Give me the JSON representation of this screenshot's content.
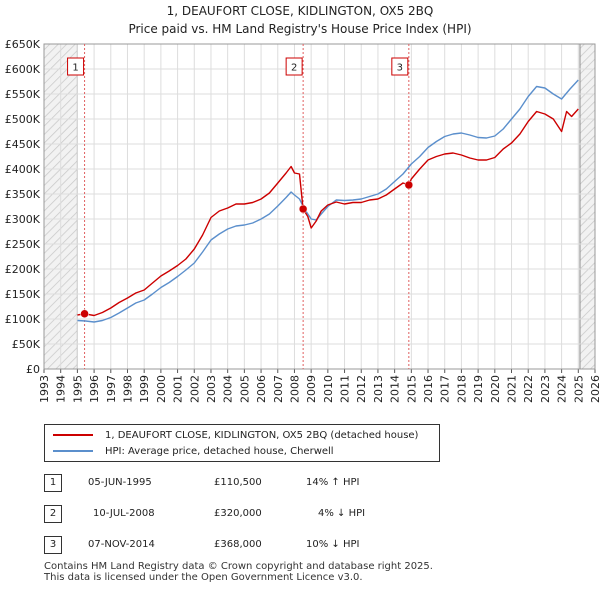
{
  "title_line1": "1, DEAUFORT CLOSE, KIDLINGTON, OX5 2BQ",
  "title_line2": "Price paid vs. HM Land Registry's House Price Index (HPI)",
  "legend": {
    "red_label": "1, DEAUFORT CLOSE, KIDLINGTON, OX5 2BQ (detached house)",
    "blue_label": "HPI: Average price, detached house, Cherwell"
  },
  "transactions": [
    {
      "num": "1",
      "date": "05-JUN-1995",
      "price": "£110,500",
      "hpi": "14% ↑ HPI"
    },
    {
      "num": "2",
      "date": "10-JUL-2008",
      "price": "£320,000",
      "hpi": "4% ↓ HPI"
    },
    {
      "num": "3",
      "date": "07-NOV-2014",
      "price": "£368,000",
      "hpi": "10% ↓ HPI"
    }
  ],
  "footer": {
    "line1": "Contains HM Land Registry data © Crown copyright and database right 2025.",
    "line2": "This data is licensed under the Open Government Licence v3.0."
  },
  "chart_data": {
    "type": "line",
    "title": "Price paid vs. HM Land Registry's House Price Index (HPI)",
    "xlabel": "",
    "ylabel": "",
    "xlim": [
      1993,
      2026
    ],
    "ylim": [
      0,
      650000
    ],
    "x_ticks": [
      1993,
      1994,
      1995,
      1996,
      1997,
      1998,
      1999,
      2000,
      2001,
      2002,
      2003,
      2004,
      2005,
      2006,
      2007,
      2008,
      2009,
      2010,
      2011,
      2012,
      2013,
      2014,
      2015,
      2016,
      2017,
      2018,
      2019,
      2020,
      2021,
      2022,
      2023,
      2024,
      2025,
      2026
    ],
    "y_ticks": [
      0,
      50000,
      100000,
      150000,
      200000,
      250000,
      300000,
      350000,
      400000,
      450000,
      500000,
      550000,
      600000,
      650000
    ],
    "y_tick_labels": [
      "£0",
      "£50K",
      "£100K",
      "£150K",
      "£200K",
      "£250K",
      "£300K",
      "£350K",
      "£400K",
      "£450K",
      "£500K",
      "£550K",
      "£600K",
      "£650K"
    ],
    "hatched_before": 1995.0,
    "hatched_after": 2025.1,
    "series": [
      {
        "name": "1, DEAUFORT CLOSE, KIDLINGTON, OX5 2BQ (detached house)",
        "color": "#cc0000",
        "x": [
          1995.0,
          1995.43,
          1996.0,
          1996.5,
          1997.0,
          1997.5,
          1998.0,
          1998.5,
          1999.0,
          1999.5,
          2000.0,
          2000.5,
          2001.0,
          2001.5,
          2002.0,
          2002.5,
          2003.0,
          2003.5,
          2004.0,
          2004.5,
          2005.0,
          2005.5,
          2006.0,
          2006.5,
          2007.0,
          2007.5,
          2007.8,
          2008.0,
          2008.3,
          2008.52,
          2008.8,
          2009.0,
          2009.3,
          2009.6,
          2010.0,
          2010.5,
          2011.0,
          2011.5,
          2012.0,
          2012.5,
          2013.0,
          2013.5,
          2014.0,
          2014.5,
          2014.85,
          2015.0,
          2015.5,
          2016.0,
          2016.5,
          2017.0,
          2017.5,
          2018.0,
          2018.5,
          2019.0,
          2019.5,
          2020.0,
          2020.5,
          2021.0,
          2021.5,
          2022.0,
          2022.5,
          2023.0,
          2023.5,
          2024.0,
          2024.3,
          2024.6,
          2025.0
        ],
        "y": [
          108000,
          110500,
          107000,
          113000,
          122000,
          133000,
          142000,
          152000,
          158000,
          172000,
          186000,
          196000,
          207000,
          220000,
          240000,
          268000,
          303000,
          316000,
          322000,
          330000,
          330000,
          333000,
          340000,
          352000,
          372000,
          392000,
          405000,
          392000,
          390000,
          320000,
          305000,
          282000,
          296000,
          316000,
          328000,
          334000,
          330000,
          333000,
          333000,
          338000,
          340000,
          348000,
          360000,
          372000,
          368000,
          380000,
          400000,
          418000,
          425000,
          430000,
          432000,
          428000,
          422000,
          418000,
          418000,
          423000,
          440000,
          452000,
          470000,
          495000,
          515000,
          510000,
          500000,
          475000,
          515000,
          505000,
          520000
        ]
      },
      {
        "name": "HPI: Average price, detached house, Cherwell",
        "color": "#5b8fcc",
        "x": [
          1995.0,
          1995.5,
          1996.0,
          1996.5,
          1997.0,
          1997.5,
          1998.0,
          1998.5,
          1999.0,
          1999.5,
          2000.0,
          2000.5,
          2001.0,
          2001.5,
          2002.0,
          2002.5,
          2003.0,
          2003.5,
          2004.0,
          2004.5,
          2005.0,
          2005.5,
          2006.0,
          2006.5,
          2007.0,
          2007.5,
          2007.8,
          2008.0,
          2008.3,
          2008.6,
          2009.0,
          2009.3,
          2009.6,
          2010.0,
          2010.5,
          2011.0,
          2011.5,
          2012.0,
          2012.5,
          2013.0,
          2013.5,
          2014.0,
          2014.5,
          2015.0,
          2015.5,
          2016.0,
          2016.5,
          2017.0,
          2017.5,
          2018.0,
          2018.5,
          2019.0,
          2019.5,
          2020.0,
          2020.5,
          2021.0,
          2021.5,
          2022.0,
          2022.5,
          2023.0,
          2023.5,
          2024.0,
          2024.5,
          2025.0
        ],
        "y": [
          97000,
          96000,
          94000,
          97000,
          103000,
          112000,
          122000,
          132000,
          138000,
          150000,
          163000,
          173000,
          185000,
          198000,
          212000,
          234000,
          258000,
          270000,
          280000,
          286000,
          288000,
          292000,
          300000,
          310000,
          326000,
          343000,
          354000,
          348000,
          340000,
          320000,
          300000,
          298000,
          310000,
          325000,
          338000,
          337000,
          338000,
          340000,
          345000,
          350000,
          360000,
          375000,
          390000,
          410000,
          425000,
          443000,
          455000,
          465000,
          470000,
          472000,
          468000,
          463000,
          462000,
          466000,
          480000,
          500000,
          520000,
          545000,
          565000,
          562000,
          550000,
          540000,
          560000,
          578000
        ]
      }
    ],
    "annotations": [
      {
        "label": "1",
        "x": 1995.43,
        "y": 110500
      },
      {
        "label": "2",
        "x": 2008.52,
        "y": 320000
      },
      {
        "label": "3",
        "x": 2014.85,
        "y": 368000
      }
    ]
  }
}
